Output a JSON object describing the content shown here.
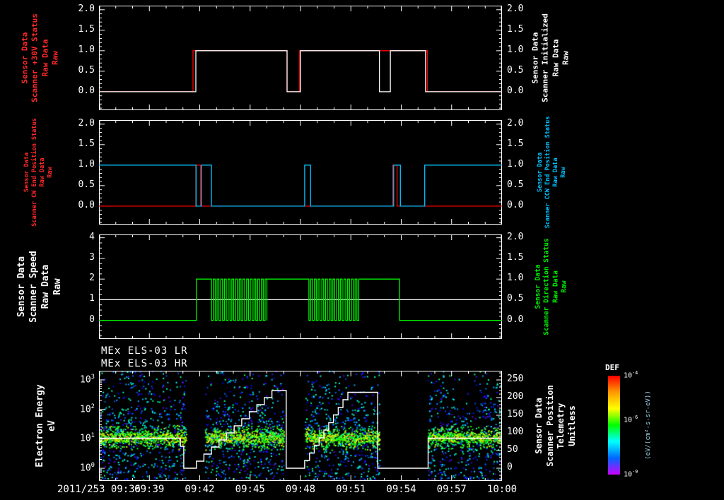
{
  "titles": {
    "lr": "MEx ELS-03 LR",
    "hr": "MEx ELS-03 HR"
  },
  "time_axis": {
    "duration_minutes": 24,
    "tick_minutes": [
      0,
      3,
      6,
      9,
      12,
      15,
      18,
      21,
      24
    ],
    "tick_labels": [
      "2011/253 09:36",
      "09:39",
      "09:42",
      "09:45",
      "09:48",
      "09:51",
      "09:54",
      "09:57",
      "10:00"
    ],
    "minor_step_minutes": 1
  },
  "chart_data": [
    {
      "id": "scanner-30v-initialized",
      "type": "line",
      "y_left": {
        "range": [
          -0.45,
          2.1
        ],
        "major": [
          0,
          0.5,
          1,
          1.5,
          2
        ],
        "labels": [
          "0.0",
          "0.5",
          "1.0",
          "1.5",
          "2.0"
        ],
        "minor_step": 0.1
      },
      "y_right": {
        "range": [
          -0.45,
          2.1
        ],
        "major": [
          0,
          0.5,
          1,
          1.5,
          2
        ],
        "labels": [
          "0.0",
          "0.5",
          "1.0",
          "1.5",
          "2.0"
        ],
        "minor_step": 0.1
      },
      "left_label": {
        "color": "#ff2a2a",
        "size": 11,
        "bold": true,
        "lines": [
          "Sensor Data",
          "Scanner +30V Status",
          "Raw Data",
          "Raw"
        ]
      },
      "right_label": {
        "color": "#ffffff",
        "size": 11,
        "bold": true,
        "lines": [
          "Sensor Data",
          "Scanner Initialized",
          "Raw Data",
          "Raw"
        ]
      },
      "series": [
        {
          "name": "Scanner +30V Status Raw",
          "color": "#ff0000",
          "axis": "left",
          "points": [
            [
              0,
              0
            ],
            [
              5.6,
              1
            ],
            [
              11.2,
              0
            ],
            [
              11.95,
              1
            ],
            [
              19.55,
              0
            ]
          ]
        },
        {
          "name": "Scanner Initialized Raw",
          "color": "#ffffff",
          "axis": "left",
          "points": [
            [
              0,
              0
            ],
            [
              5.77,
              1
            ],
            [
              11.2,
              0
            ],
            [
              12.0,
              1
            ],
            [
              16.7,
              0
            ],
            [
              17.35,
              1
            ],
            [
              19.45,
              0
            ]
          ]
        }
      ]
    },
    {
      "id": "scanner-end-position-status",
      "type": "line",
      "y_left": {
        "range": [
          -0.45,
          2.1
        ],
        "major": [
          0,
          0.5,
          1,
          1.5,
          2
        ],
        "labels": [
          "0.0",
          "0.5",
          "1.0",
          "1.5",
          "2.0"
        ],
        "minor_step": 0.1
      },
      "y_right": {
        "range": [
          -0.45,
          2.1
        ],
        "major": [
          0,
          0.5,
          1,
          1.5,
          2
        ],
        "labels": [
          "0.0",
          "0.5",
          "1.0",
          "1.5",
          "2.0"
        ],
        "minor_step": 0.1
      },
      "left_label": {
        "color": "#ff2a2a",
        "size": 8.5,
        "bold": true,
        "lines": [
          "Sensor Data",
          "Scanner CW End Position Status",
          "Raw Data",
          "Raw"
        ]
      },
      "right_label": {
        "color": "#00c0ff",
        "size": 8.5,
        "bold": true,
        "lines": [
          "Sensor Data",
          "Scanner CCW End Position Status",
          "Raw Data",
          "Raw"
        ]
      },
      "series": [
        {
          "name": "Scanner CW End Position Status Raw",
          "color": "#ff0000",
          "axis": "left",
          "points": [
            [
              0,
              0
            ],
            [
              5.77,
              1
            ],
            [
              6.05,
              0
            ],
            [
              17.5,
              1
            ],
            [
              17.75,
              0
            ]
          ]
        },
        {
          "name": "Scanner CCW End Position Status Raw",
          "color": "#00c0ff",
          "axis": "left",
          "points": [
            [
              0,
              1
            ],
            [
              5.78,
              0
            ],
            [
              6.1,
              1
            ],
            [
              6.7,
              0
            ],
            [
              12.25,
              1
            ],
            [
              12.6,
              0
            ],
            [
              17.55,
              1
            ],
            [
              17.95,
              0
            ],
            [
              19.4,
              1
            ]
          ]
        }
      ]
    },
    {
      "id": "scanner-speed-direction",
      "type": "line",
      "y_left": {
        "range": [
          -0.9,
          4.16
        ],
        "major": [
          0,
          1,
          2,
          3,
          4
        ],
        "labels": [
          "0",
          "1",
          "2",
          "3",
          "4"
        ],
        "minor_step": 0.25
      },
      "y_right": {
        "range": [
          -0.45,
          2.08
        ],
        "major": [
          0,
          0.5,
          1,
          1.5,
          2
        ],
        "labels": [
          "0.0",
          "0.5",
          "1.0",
          "1.5",
          "2.0"
        ],
        "minor_step": 0.1
      },
      "left_label": {
        "color": "#ffffff",
        "size": 13,
        "bold": true,
        "lines": [
          "Sensor Data",
          "Scanner Speed",
          "Raw Data",
          "Raw"
        ]
      },
      "right_label": {
        "color": "#00ee00",
        "size": 9.5,
        "bold": true,
        "lines": [
          "Sensor Data",
          "Scanner Direction Status",
          "Raw Data",
          "Raw"
        ]
      },
      "series": [
        {
          "name": "Scanner Speed Raw",
          "color": "#ffffff",
          "axis": "left",
          "points": [
            [
              0,
              1
            ]
          ]
        },
        {
          "name": "Scanner Direction Status Raw",
          "color": "#00ee00",
          "axis": "right",
          "points": [
            [
              0,
              0
            ],
            [
              5.8,
              1
            ],
            [
              17.9,
              0
            ]
          ],
          "oscillations": [
            {
              "t0": 6.7,
              "t1": 10.0,
              "half_period": 0.11,
              "lo": 0,
              "hi": 1
            },
            {
              "t0": 12.5,
              "t1": 15.5,
              "half_period": 0.11,
              "lo": 0,
              "hi": 1
            }
          ]
        }
      ]
    },
    {
      "id": "els-electron-spectrogram",
      "type": "heatmap",
      "y_left": {
        "log": true,
        "range": [
          -0.43,
          3.31
        ],
        "major": [
          0,
          1,
          2,
          3
        ],
        "exp_labels": [
          "0",
          "1",
          "2",
          "3"
        ]
      },
      "y_right": {
        "range": [
          -36,
          276
        ],
        "major": [
          0,
          50,
          100,
          150,
          200,
          250
        ],
        "labels": [
          "0",
          "50",
          "100",
          "150",
          "200",
          "250"
        ],
        "minor_step": 10
      },
      "left_label": {
        "color": "#ffffff",
        "size": 13,
        "bold": true,
        "lines": [
          "Electron Energy",
          "eV"
        ]
      },
      "right_label": {
        "color": "#ffffff",
        "size": 12,
        "bold": true,
        "lines": [
          "Sensor Data",
          "Scanner Position",
          "Telemetry",
          "Unitless"
        ]
      },
      "spectrogram": {
        "seed": 20110253,
        "gaps_t": [
          [
            5.15,
            6.3
          ],
          [
            11.0,
            12.25
          ],
          [
            16.7,
            19.55
          ]
        ],
        "band_center_log": 1.05,
        "band_sigma_log": 0.2,
        "n_background": 5200,
        "band_points_per_bin": 2,
        "band_bin_minutes": 0.05
      },
      "position_series": {
        "name": "Scanner Position Telemetry",
        "color": "#ffffff",
        "axis": "right",
        "points": [
          [
            0,
            85
          ],
          [
            4.85,
            62
          ],
          [
            5.05,
            0
          ],
          [
            5.35,
            0
          ],
          [
            5.8,
            20
          ],
          [
            6.25,
            40
          ],
          [
            6.7,
            60
          ],
          [
            7.15,
            80
          ],
          [
            7.6,
            100
          ],
          [
            8.05,
            120
          ],
          [
            8.5,
            140
          ],
          [
            8.95,
            160
          ],
          [
            9.4,
            180
          ],
          [
            9.85,
            200
          ],
          [
            10.3,
            220
          ],
          [
            11.15,
            0
          ],
          [
            12.25,
            22
          ],
          [
            12.54,
            43
          ],
          [
            12.82,
            65
          ],
          [
            13.11,
            86
          ],
          [
            13.39,
            108
          ],
          [
            13.68,
            129
          ],
          [
            13.96,
            151
          ],
          [
            14.25,
            172
          ],
          [
            14.53,
            194
          ],
          [
            14.82,
            215
          ],
          [
            16.6,
            0
          ],
          [
            19.6,
            85
          ]
        ]
      }
    }
  ],
  "colorbar": {
    "title": "DEF",
    "stops": [
      "#ff0000",
      "#ff9900",
      "#ffff00",
      "#00ff00",
      "#00ffff",
      "#0066ff",
      "#cc00ff"
    ],
    "ticks": [
      {
        "exp": "-4",
        "frac": 0
      },
      {
        "exp": "-6",
        "frac": 0.45
      },
      {
        "exp": "-9",
        "frac": 1
      }
    ],
    "units": "(eV/(cm²-s-sr-eV))"
  }
}
